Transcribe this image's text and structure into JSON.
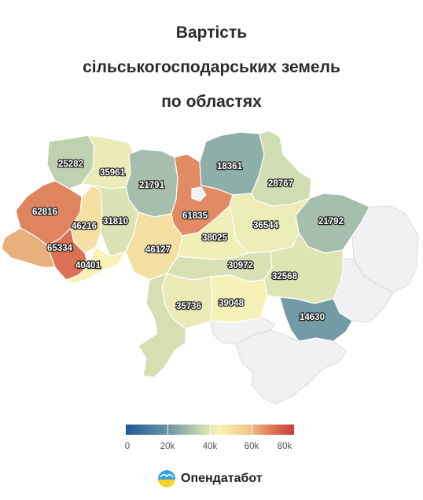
{
  "title_lines": [
    "Вартість",
    "сільськогосподарських земель",
    "по областях"
  ],
  "legend": {
    "ticks": [
      "0",
      "20k",
      "40k",
      "60k",
      "80k"
    ],
    "tick_values": [
      0,
      20000,
      40000,
      60000,
      80000
    ],
    "range": [
      0,
      80000
    ],
    "colors": [
      "#1f5a94",
      "#6a94a4",
      "#c9d8b0",
      "#f8f3b8",
      "#f2c98a",
      "#d9664e",
      "#c2403a"
    ]
  },
  "brand": {
    "name": "Опендатабот"
  },
  "regions": [
    {
      "id": "volyn",
      "value": "25282"
    },
    {
      "id": "rivne",
      "value": "35961"
    },
    {
      "id": "zhytomyr",
      "value": "21791"
    },
    {
      "id": "kyiv-oblast",
      "value": "61835"
    },
    {
      "id": "chernihiv",
      "value": "18361"
    },
    {
      "id": "sumy",
      "value": "28767"
    },
    {
      "id": "kharkiv",
      "value": "21792"
    },
    {
      "id": "poltava",
      "value": "36544"
    },
    {
      "id": "lviv",
      "value": "62816"
    },
    {
      "id": "ternopil",
      "value": "46216"
    },
    {
      "id": "khmelnytskyi",
      "value": "31810"
    },
    {
      "id": "vinnytsia",
      "value": "46127"
    },
    {
      "id": "cherkasy",
      "value": "38025"
    },
    {
      "id": "ivano-frankivsk",
      "value": "65334"
    },
    {
      "id": "chernivtsi",
      "value": "40401"
    },
    {
      "id": "kirovohrad",
      "value": "30972"
    },
    {
      "id": "dnipropetrovsk",
      "value": "32568"
    },
    {
      "id": "zaporizhzhia",
      "value": "14630"
    },
    {
      "id": "mykolaiv",
      "value": "35736"
    },
    {
      "id": "kherson",
      "value": "39048"
    },
    {
      "id": "zakarpattia",
      "value": ""
    },
    {
      "id": "odesa",
      "value": ""
    }
  ]
}
